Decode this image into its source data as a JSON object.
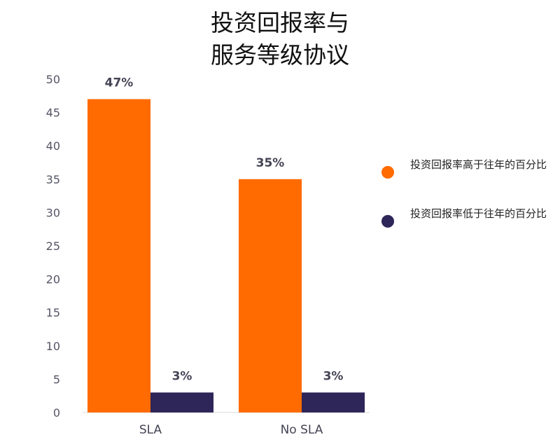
{
  "chart_data": {
    "type": "bar",
    "title": "投资回报率与\n服务等级协议",
    "categories": [
      "SLA",
      "No SLA"
    ],
    "series": [
      {
        "name": "投资回报率高于往年的百分比",
        "values": [
          47,
          35
        ],
        "labels": [
          "47%",
          "35%"
        ],
        "color": "#ff6b00"
      },
      {
        "name": "投资回报率低于往年的百分比",
        "values": [
          3,
          3
        ],
        "labels": [
          "3%",
          "3%"
        ],
        "color": "#2e2558"
      }
    ],
    "ylim": [
      0,
      50
    ],
    "yticks": [
      "0",
      "5",
      "10",
      "15",
      "20",
      "25",
      "30",
      "35",
      "40",
      "45",
      "50"
    ],
    "grid": false,
    "legend_position": "right"
  }
}
